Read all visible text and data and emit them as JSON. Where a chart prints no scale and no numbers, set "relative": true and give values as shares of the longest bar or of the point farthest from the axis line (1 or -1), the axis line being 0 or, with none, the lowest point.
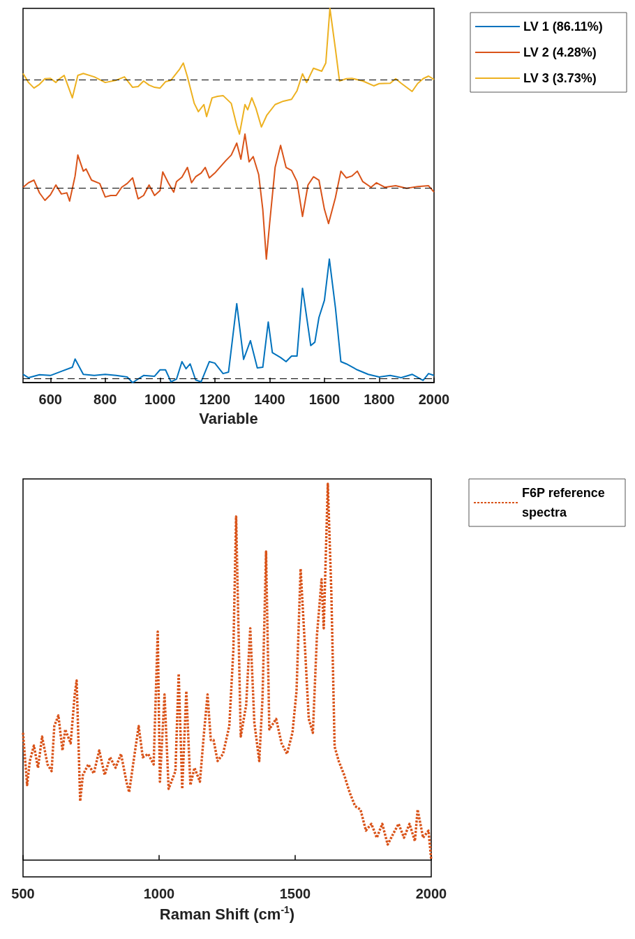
{
  "chart_data": [
    {
      "type": "line",
      "relative": true,
      "xlabel": "Variable",
      "xlim": [
        500,
        2000
      ],
      "xticks": [
        600,
        800,
        1000,
        1200,
        1400,
        1600,
        1800,
        2000
      ],
      "tick_labels": "x",
      "legend": "top right",
      "grid": false,
      "marker": "none",
      "line_style": "solid",
      "ref_lines": [
        {
          "axis": "y",
          "value": 0.01,
          "color": "#000000",
          "line_style": "dashed"
        },
        {
          "axis": "y",
          "value": 0.52,
          "color": "#000000",
          "line_style": "dashed"
        },
        {
          "axis": "y",
          "value": 0.806,
          "color": "#000000",
          "line_style": "dashed"
        }
      ],
      "series": [
        {
          "name": "LV 1 (86.11%)",
          "color": "#0072bd",
          "x": [
            500,
            520,
            560,
            600,
            640,
            680,
            690,
            720,
            760,
            800,
            840,
            880,
            900,
            940,
            980,
            1000,
            1020,
            1040,
            1060,
            1080,
            1095,
            1110,
            1130,
            1150,
            1180,
            1200,
            1230,
            1250,
            1280,
            1305,
            1330,
            1355,
            1375,
            1395,
            1410,
            1440,
            1460,
            1480,
            1500,
            1520,
            1550,
            1565,
            1580,
            1600,
            1618,
            1640,
            1660,
            1680,
            1720,
            1760,
            1800,
            1840,
            1880,
            1920,
            1960,
            1980,
            2000
          ],
          "values": [
            0.022,
            0.013,
            0.021,
            0.019,
            0.03,
            0.041,
            0.063,
            0.022,
            0.019,
            0.022,
            0.019,
            0.015,
            0,
            0.019,
            0.017,
            0.034,
            0.034,
            0.002,
            0.009,
            0.056,
            0.037,
            0.05,
            0.007,
            0.002,
            0.056,
            0.052,
            0.024,
            0.028,
            0.211,
            0.062,
            0.112,
            0.039,
            0.041,
            0.162,
            0.08,
            0.067,
            0.056,
            0.071,
            0.071,
            0.252,
            0.099,
            0.108,
            0.174,
            0.22,
            0.33,
            0.201,
            0.056,
            0.05,
            0.034,
            0.022,
            0.015,
            0.019,
            0.013,
            0.022,
            0.006,
            0.024,
            0.019
          ]
        },
        {
          "name": "LV 2 (4.28%)",
          "color": "#d95319",
          "x": [
            500,
            520,
            540,
            560,
            580,
            600,
            620,
            640,
            660,
            670,
            690,
            700,
            720,
            730,
            750,
            780,
            800,
            820,
            840,
            860,
            880,
            900,
            920,
            940,
            960,
            980,
            1000,
            1010,
            1030,
            1050,
            1060,
            1080,
            1100,
            1115,
            1130,
            1150,
            1165,
            1180,
            1200,
            1240,
            1260,
            1280,
            1295,
            1310,
            1325,
            1340,
            1360,
            1375,
            1388,
            1400,
            1420,
            1440,
            1460,
            1480,
            1500,
            1520,
            1540,
            1560,
            1580,
            1600,
            1615,
            1640,
            1660,
            1680,
            1700,
            1720,
            1740,
            1770,
            1790,
            1820,
            1860,
            1900,
            1940,
            1980,
            2000
          ],
          "values": [
            0.522,
            0.534,
            0.541,
            0.507,
            0.487,
            0.502,
            0.528,
            0.504,
            0.507,
            0.485,
            0.552,
            0.608,
            0.565,
            0.571,
            0.541,
            0.532,
            0.496,
            0.5,
            0.5,
            0.522,
            0.532,
            0.547,
            0.491,
            0.5,
            0.528,
            0.5,
            0.513,
            0.563,
            0.534,
            0.509,
            0.537,
            0.549,
            0.575,
            0.534,
            0.55,
            0.56,
            0.575,
            0.547,
            0.56,
            0.593,
            0.608,
            0.64,
            0.597,
            0.664,
            0.59,
            0.604,
            0.556,
            0.463,
            0.33,
            0.425,
            0.575,
            0.634,
            0.575,
            0.567,
            0.537,
            0.444,
            0.528,
            0.55,
            0.541,
            0.463,
            0.425,
            0.494,
            0.565,
            0.547,
            0.552,
            0.565,
            0.537,
            0.522,
            0.534,
            0.522,
            0.526,
            0.519,
            0.524,
            0.526,
            0.509
          ]
        },
        {
          "name": "LV 3 (3.73%)",
          "color": "#edb120",
          "x": [
            500,
            520,
            540,
            560,
            580,
            600,
            620,
            630,
            650,
            680,
            700,
            720,
            760,
            800,
            840,
            870,
            900,
            920,
            940,
            960,
            980,
            1000,
            1020,
            1040,
            1070,
            1085,
            1100,
            1125,
            1140,
            1160,
            1170,
            1190,
            1210,
            1230,
            1260,
            1280,
            1290,
            1310,
            1320,
            1335,
            1350,
            1370,
            1390,
            1420,
            1450,
            1480,
            1500,
            1520,
            1535,
            1560,
            1590,
            1605,
            1620,
            1640,
            1655,
            1680,
            1700,
            1740,
            1780,
            1800,
            1840,
            1860,
            1880,
            1920,
            1940,
            1960,
            1980,
            2000
          ],
          "values": [
            0.826,
            0.802,
            0.787,
            0.797,
            0.812,
            0.813,
            0.802,
            0.81,
            0.821,
            0.761,
            0.821,
            0.826,
            0.817,
            0.802,
            0.808,
            0.817,
            0.789,
            0.791,
            0.806,
            0.795,
            0.789,
            0.787,
            0.804,
            0.808,
            0.836,
            0.854,
            0.817,
            0.746,
            0.724,
            0.743,
            0.711,
            0.761,
            0.765,
            0.767,
            0.746,
            0.687,
            0.664,
            0.743,
            0.729,
            0.761,
            0.733,
            0.683,
            0.715,
            0.743,
            0.752,
            0.757,
            0.78,
            0.825,
            0.802,
            0.84,
            0.832,
            0.854,
            1,
            0.892,
            0.806,
            0.812,
            0.813,
            0.806,
            0.793,
            0.799,
            0.8,
            0.812,
            0.8,
            0.778,
            0.799,
            0.812,
            0.819,
            0.81
          ]
        }
      ]
    },
    {
      "type": "line",
      "relative": true,
      "xlabel": "Raman Shift (cm$^{-1}$)",
      "xlim": [
        500,
        2000
      ],
      "xticks": [
        500,
        1000,
        1500,
        2000
      ],
      "tick_labels": "x",
      "legend": "top right",
      "grid": false,
      "marker": "none",
      "line_style": "dotted",
      "series": [
        {
          "name": "F6P reference spectra",
          "color": "#d95319",
          "x": [
            500,
            515,
            525,
            540,
            555,
            570,
            590,
            605,
            615,
            630,
            645,
            655,
            675,
            690,
            697,
            705,
            710,
            720,
            740,
            760,
            780,
            800,
            820,
            840,
            860,
            880,
            890,
            910,
            925,
            940,
            960,
            980,
            995,
            1003,
            1020,
            1035,
            1060,
            1072,
            1085,
            1100,
            1115,
            1130,
            1150,
            1165,
            1178,
            1190,
            1200,
            1215,
            1235,
            1258,
            1273,
            1283,
            1290,
            1300,
            1320,
            1335,
            1350,
            1368,
            1380,
            1393,
            1405,
            1430,
            1450,
            1470,
            1490,
            1505,
            1520,
            1535,
            1550,
            1565,
            1580,
            1597,
            1605,
            1620,
            1633,
            1645,
            1660,
            1680,
            1700,
            1720,
            1740,
            1760,
            1780,
            1800,
            1820,
            1840,
            1860,
            1880,
            1900,
            1920,
            1940,
            1950,
            1970,
            1990,
            2000
          ],
          "values": [
            0.338,
            0.199,
            0.263,
            0.304,
            0.245,
            0.328,
            0.254,
            0.236,
            0.356,
            0.384,
            0.291,
            0.347,
            0.31,
            0.44,
            0.477,
            0.282,
            0.156,
            0.226,
            0.254,
            0.23,
            0.291,
            0.226,
            0.273,
            0.245,
            0.282,
            0.208,
            0.18,
            0.282,
            0.356,
            0.273,
            0.282,
            0.254,
            0.607,
            0.208,
            0.44,
            0.189,
            0.236,
            0.495,
            0.189,
            0.449,
            0.199,
            0.245,
            0.208,
            0.338,
            0.44,
            0.319,
            0.319,
            0.263,
            0.282,
            0.356,
            0.56,
            0.913,
            0.672,
            0.328,
            0.412,
            0.616,
            0.365,
            0.263,
            0.43,
            0.82,
            0.347,
            0.375,
            0.31,
            0.282,
            0.338,
            0.449,
            0.774,
            0.579,
            0.375,
            0.338,
            0.597,
            0.746,
            0.616,
            1,
            0.709,
            0.301,
            0.263,
            0.226,
            0.18,
            0.143,
            0.134,
            0.078,
            0.096,
            0.059,
            0.096,
            0.041,
            0.069,
            0.096,
            0.059,
            0.096,
            0.05,
            0.134,
            0.059,
            0.078,
            0
          ]
        }
      ]
    }
  ]
}
